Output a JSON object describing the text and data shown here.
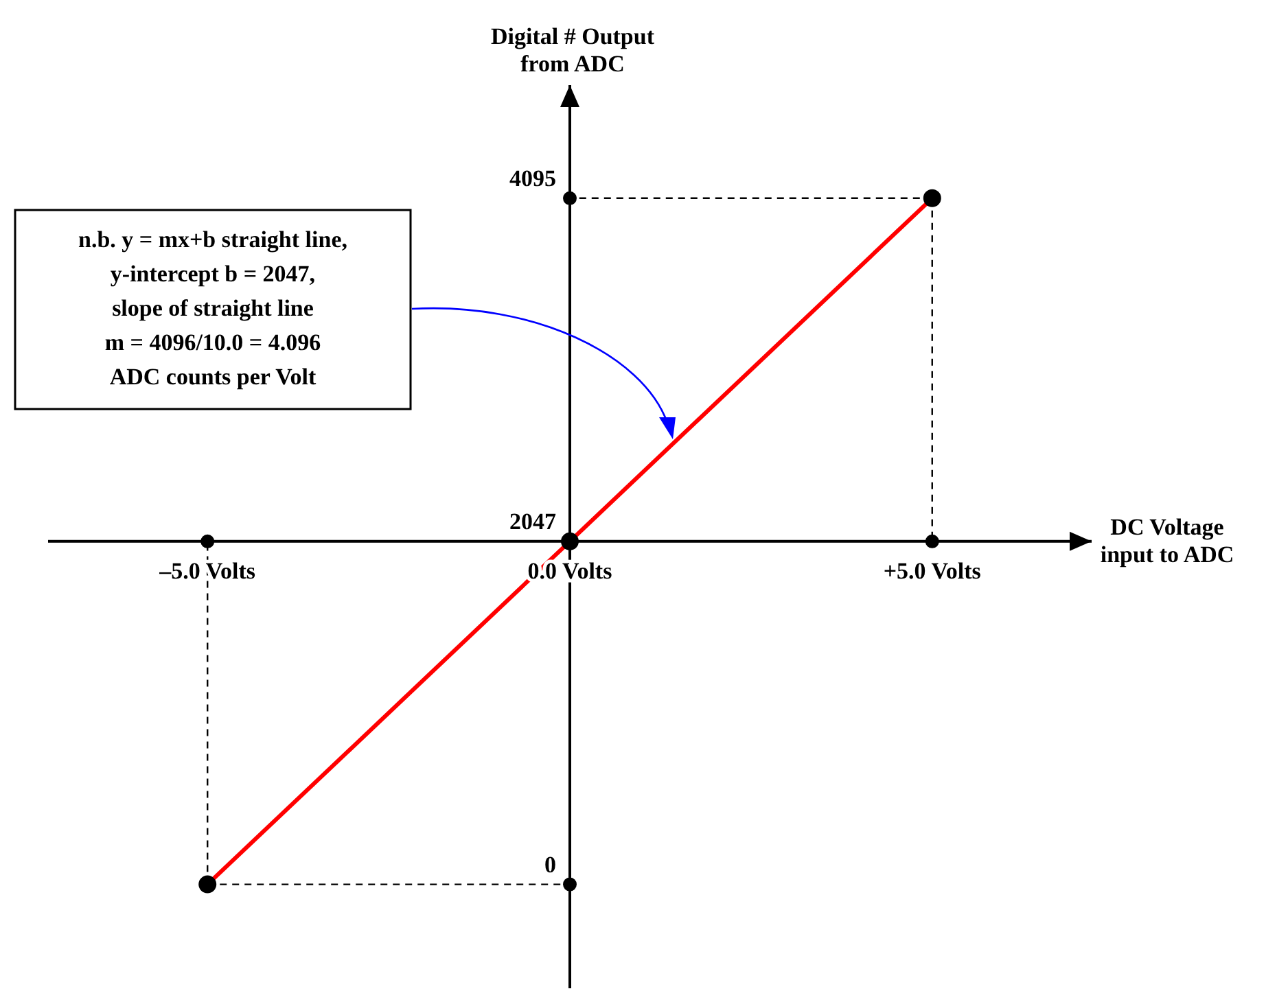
{
  "chart_data": {
    "type": "line",
    "xlabel": "DC Voltage\ninput to ADC",
    "ylabel": "Digital # Output\nfrom ADC",
    "x": [
      -5,
      0,
      5
    ],
    "series": [
      {
        "color": "#ff0000",
        "values": [
          0,
          2047,
          4095
        ]
      }
    ],
    "marker": "circle",
    "grid": false,
    "legend": false,
    "xlim": [
      -7.2,
      7.2
    ],
    "ylim": [
      -620,
      4770
    ],
    "xticks": [
      {
        "value": -5,
        "label": "–5.0 Volts"
      },
      {
        "value": 0,
        "label": "0.0 Volts"
      },
      {
        "value": 5,
        "label": "+5.0 Volts"
      }
    ],
    "yticks": [
      0,
      2047,
      4095
    ],
    "annotations": [
      "n.b. y = mx+b straight line,\ny-intercept b = 2047,\nslope of straight line\nm = 4096/10.0 = 4.096\nADC counts per Volt"
    ]
  }
}
